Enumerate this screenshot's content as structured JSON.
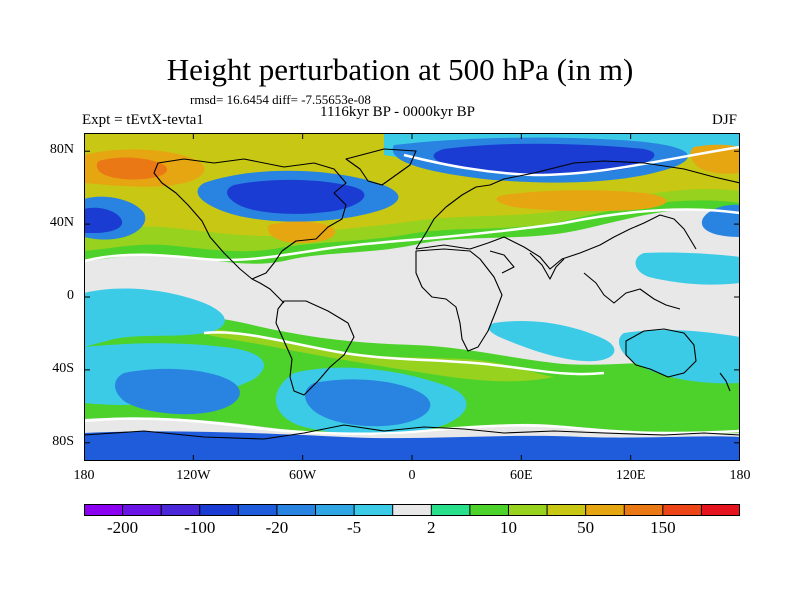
{
  "title": "Height perturbation at 500 hPa (in m)",
  "stats_line": "rmsd= 16.6454  diff= -7.55653e-08",
  "period": "1116kyr BP - 0000kyr BP",
  "experiment": "Expt = tEvtX-tevta1",
  "season": "DJF",
  "map": {
    "projection": "cylindrical equidistant",
    "lon_range": [
      -180,
      180
    ],
    "lat_range": [
      -90,
      90
    ],
    "lat_ticks": [
      {
        "value": 80,
        "label": "80N"
      },
      {
        "value": 40,
        "label": "40N"
      },
      {
        "value": 0,
        "label": "0"
      },
      {
        "value": -40,
        "label": "40S"
      },
      {
        "value": -80,
        "label": "80S"
      }
    ],
    "lon_ticks": [
      {
        "value": -180,
        "label": "180"
      },
      {
        "value": -120,
        "label": "120W"
      },
      {
        "value": -60,
        "label": "60W"
      },
      {
        "value": 0,
        "label": "0"
      },
      {
        "value": 60,
        "label": "60E"
      },
      {
        "value": 120,
        "label": "120E"
      },
      {
        "value": 180,
        "label": "180"
      }
    ]
  },
  "colorbar": {
    "colors": [
      "#8b00f0",
      "#6a14e6",
      "#4a28da",
      "#1a3cd2",
      "#1e5cdc",
      "#2884e0",
      "#30a6e4",
      "#3ccbe6",
      "#e8e8e8",
      "#28e08c",
      "#4cd22a",
      "#96d21e",
      "#c8c814",
      "#e6a612",
      "#ea7814",
      "#ec4618",
      "#e6141e"
    ],
    "labels": [
      {
        "index": 1,
        "text": "-200"
      },
      {
        "index": 3,
        "text": "-100"
      },
      {
        "index": 5,
        "text": "-20"
      },
      {
        "index": 7,
        "text": "-5"
      },
      {
        "index": 9,
        "text": "2"
      },
      {
        "index": 11,
        "text": "10"
      },
      {
        "index": 13,
        "text": "50"
      },
      {
        "index": 15,
        "text": "150"
      }
    ]
  }
}
